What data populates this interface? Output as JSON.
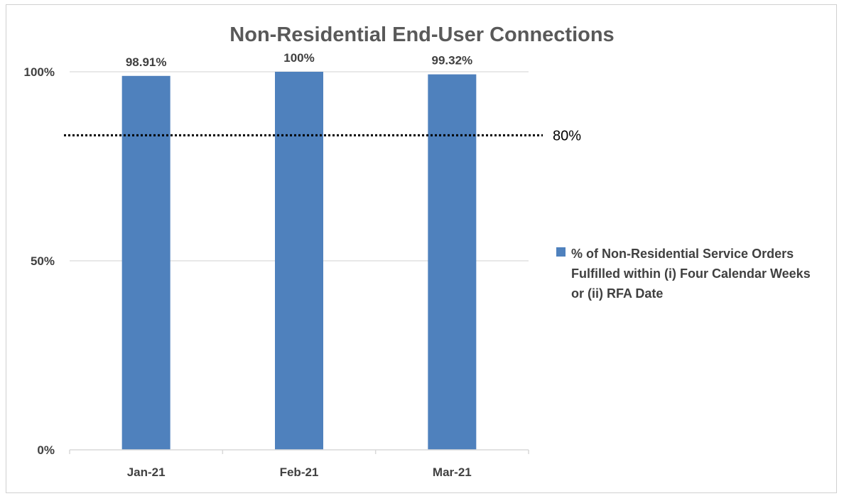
{
  "chart_data": {
    "type": "bar",
    "title": "Non-Residential End-User Connections",
    "categories": [
      "Jan-21",
      "Feb-21",
      "Mar-21"
    ],
    "series": [
      {
        "name": "% of Non-Residential Service Orders Fulfilled within (i) Four Calendar Weeks or (ii) RFA Date",
        "values": [
          98.91,
          100,
          99.32
        ],
        "data_labels": [
          "98.91%",
          "100%",
          "99.32%"
        ],
        "color": "#4f81bd"
      }
    ],
    "y_ticks": [
      {
        "value": 0,
        "label": "0%"
      },
      {
        "value": 50,
        "label": "50%"
      },
      {
        "value": 100,
        "label": "100%"
      }
    ],
    "ylim": [
      0,
      100
    ],
    "reference_line": {
      "value": 80,
      "label": "80%",
      "style": "dotted",
      "color": "#000000"
    },
    "grid": true,
    "legend_position": "right"
  }
}
